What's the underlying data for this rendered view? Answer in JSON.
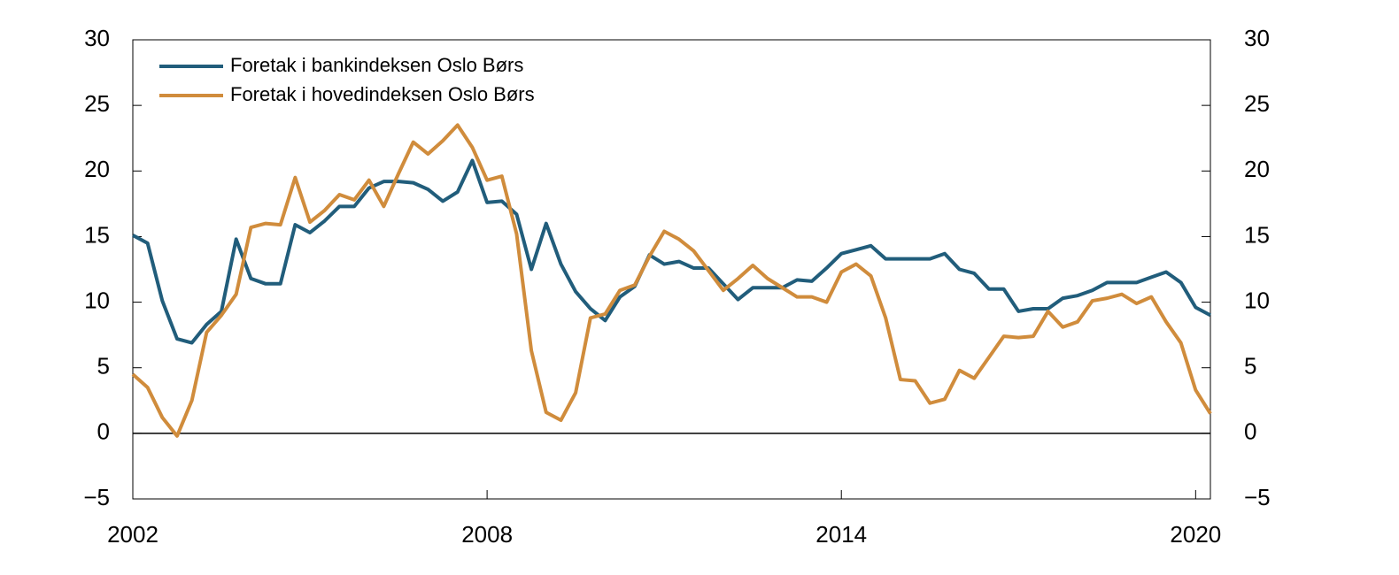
{
  "chart_data": {
    "type": "line",
    "x": [
      2002,
      2002.25,
      2002.5,
      2002.75,
      2003,
      2003.25,
      2003.5,
      2003.75,
      2004,
      2004.25,
      2004.5,
      2004.75,
      2005,
      2005.25,
      2005.5,
      2005.75,
      2006,
      2006.25,
      2006.5,
      2006.75,
      2007,
      2007.25,
      2007.5,
      2007.75,
      2008,
      2008.25,
      2008.5,
      2008.75,
      2009,
      2009.25,
      2009.5,
      2009.75,
      2010,
      2010.25,
      2010.5,
      2010.75,
      2011,
      2011.25,
      2011.5,
      2011.75,
      2012,
      2012.25,
      2012.5,
      2012.75,
      2013,
      2013.25,
      2013.5,
      2013.75,
      2014,
      2014.25,
      2014.5,
      2014.75,
      2015,
      2015.25,
      2015.5,
      2015.75,
      2016,
      2016.25,
      2016.5,
      2016.75,
      2017,
      2017.25,
      2017.5,
      2017.75,
      2018,
      2018.25,
      2018.5,
      2018.75,
      2019,
      2019.25,
      2019.5,
      2019.75,
      2020,
      2020.25
    ],
    "series": [
      {
        "name": "Foretak i bankindeksen Oslo Børs",
        "color": "#215d7b",
        "values": [
          15.1,
          14.5,
          10.1,
          7.2,
          6.9,
          8.3,
          9.3,
          14.8,
          11.8,
          11.4,
          11.4,
          15.9,
          15.3,
          16.2,
          17.3,
          17.3,
          18.7,
          19.2,
          19.2,
          19.1,
          18.6,
          17.7,
          18.4,
          20.8,
          17.6,
          17.7,
          16.7,
          12.5,
          16.0,
          12.9,
          10.8,
          9.5,
          8.6,
          10.4,
          11.2,
          13.6,
          12.9,
          13.1,
          12.6,
          12.6,
          11.4,
          10.2,
          11.1,
          11.1,
          11.1,
          11.7,
          11.6,
          12.6,
          13.7,
          14.0,
          14.3,
          13.3,
          13.3,
          13.3,
          13.3,
          13.7,
          12.5,
          12.2,
          11.0,
          11.0,
          9.3,
          9.5,
          9.5,
          10.3,
          10.5,
          10.9,
          11.5,
          11.5,
          11.5,
          11.9,
          12.3,
          11.5,
          9.6,
          9.0
        ]
      },
      {
        "name": "Foretak i hovedindeksen Oslo Børs",
        "color": "#d08c3c",
        "values": [
          4.5,
          3.5,
          1.2,
          -0.2,
          2.5,
          7.7,
          9.0,
          10.6,
          15.7,
          16.0,
          15.9,
          19.5,
          16.1,
          17.0,
          18.2,
          17.8,
          19.3,
          17.3,
          19.8,
          22.2,
          21.3,
          22.3,
          23.5,
          21.8,
          19.3,
          19.6,
          15.2,
          6.3,
          1.6,
          1.0,
          3.1,
          8.8,
          9.1,
          10.9,
          11.3,
          13.5,
          15.4,
          14.8,
          13.9,
          12.4,
          10.9,
          11.8,
          12.8,
          11.8,
          11.1,
          10.4,
          10.4,
          10.0,
          12.3,
          12.9,
          12.0,
          8.8,
          4.1,
          4.0,
          2.3,
          2.6,
          4.8,
          4.2,
          5.8,
          7.4,
          7.3,
          7.4,
          9.3,
          8.1,
          8.5,
          10.1,
          10.3,
          10.6,
          9.9,
          10.4,
          8.5,
          6.9,
          3.3,
          1.5
        ]
      }
    ],
    "xlim": [
      2002,
      2020.25
    ],
    "xticks": [
      2002,
      2008,
      2014,
      2020
    ],
    "ylim": [
      -5,
      30
    ],
    "yticks": [
      {
        "value": -5,
        "label": "−5"
      },
      0,
      5,
      10,
      15,
      20,
      25,
      30
    ],
    "y2lim": [
      -5,
      30
    ],
    "y2ticks": [
      {
        "value": -5,
        "label": "−5"
      },
      0,
      5,
      10,
      15,
      20,
      25,
      30
    ],
    "zero_line": true,
    "grid": false,
    "legend": "upper left"
  }
}
